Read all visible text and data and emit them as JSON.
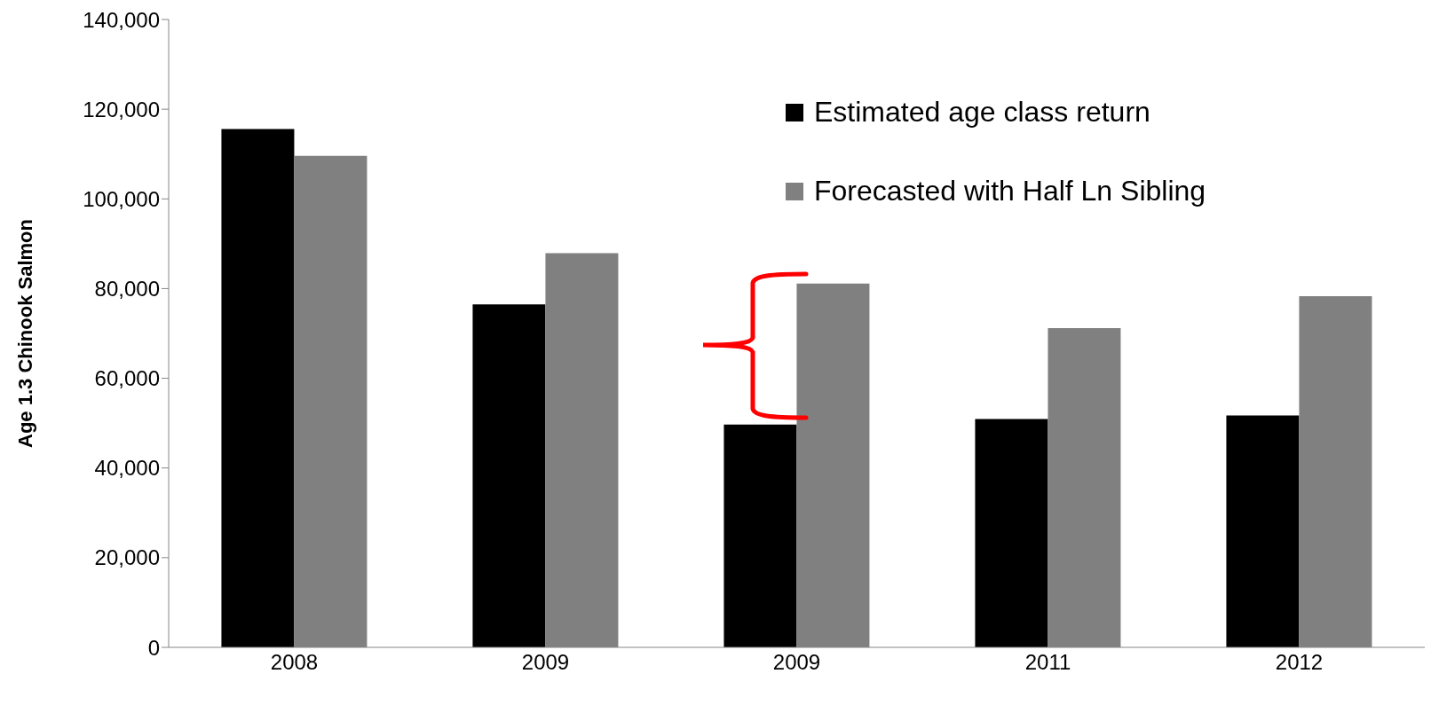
{
  "chart_data": {
    "type": "bar",
    "ylabel": "Age 1.3 Chinook Salmon",
    "categories": [
      "2008",
      "2009",
      "2009",
      "2011",
      "2012"
    ],
    "series": [
      {
        "name": "Estimated age class return",
        "color": "#000000",
        "values": [
          115600,
          76500,
          49700,
          50900,
          51700
        ]
      },
      {
        "name": "Forecasted with Half Ln Sibling",
        "color": "#808080",
        "values": [
          109600,
          87900,
          81100,
          71200,
          78300
        ]
      }
    ],
    "ylim": [
      0,
      140000
    ],
    "yticks": [
      0,
      {
        "value": 20000,
        "label": "20,000"
      },
      {
        "value": 40000,
        "label": "40,000"
      },
      {
        "value": 60000,
        "label": "60,000"
      },
      {
        "value": 80000,
        "label": "80,000"
      },
      {
        "value": 100000,
        "label": "100,000"
      },
      {
        "value": 120000,
        "label": "120,000"
      },
      {
        "value": 140000,
        "label": "140,000"
      }
    ],
    "grid": false,
    "legend": "top right"
  }
}
